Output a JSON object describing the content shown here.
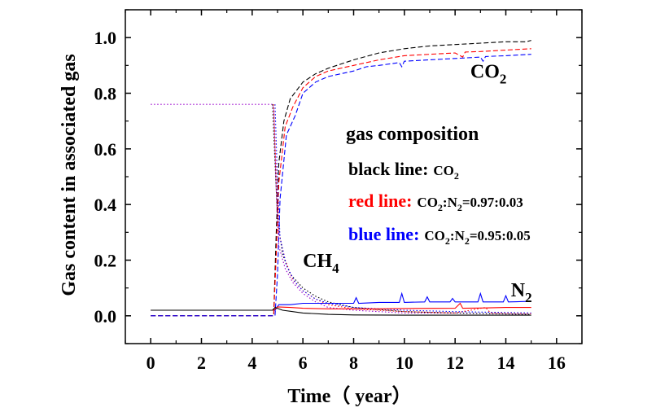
{
  "chart_data": {
    "type": "line",
    "xlabel": "Time（ year）",
    "ylabel": "Gas content in associated gas",
    "xlim": [
      -1,
      17
    ],
    "ylim": [
      -0.1,
      1.1
    ],
    "x_ticks": [
      0,
      2,
      4,
      6,
      8,
      10,
      12,
      14,
      16
    ],
    "y_ticks": [
      0.0,
      0.2,
      0.4,
      0.6,
      0.8,
      1.0
    ],
    "x_tick_labels": [
      "0",
      "2",
      "4",
      "6",
      "8",
      "10",
      "12",
      "14",
      "16"
    ],
    "y_tick_labels": [
      "0.0",
      "0.2",
      "0.4",
      "0.6",
      "0.8",
      "1.0"
    ],
    "grid": false,
    "colors": {
      "black": "#000000",
      "red": "#ff0000",
      "blue": "#0000ff",
      "purple": "#9900cc"
    },
    "legend": {
      "title": "gas composition",
      "entries": [
        {
          "label": "black line:",
          "desc": "CO2",
          "color": "#000000"
        },
        {
          "label": "red line:",
          "desc": "CO2:N2=0.97:0.03",
          "color": "#ff0000"
        },
        {
          "label": "blue line:",
          "desc": "CO2:N2=0.95:0.05",
          "color": "#0000ff"
        }
      ]
    },
    "annotations": [
      {
        "text": "CO2",
        "x": 12.6,
        "y": 0.855
      },
      {
        "text": "CH4",
        "x": 6.0,
        "y": 0.175
      },
      {
        "text": "N2",
        "x": 14.2,
        "y": 0.07
      }
    ],
    "series": [
      {
        "gas": "CO2",
        "group": "black",
        "color": "#000000",
        "dash": "dashed",
        "points": [
          [
            0,
            0.0
          ],
          [
            4.8,
            0.0
          ],
          [
            4.85,
            0.0
          ],
          [
            4.95,
            0.3
          ],
          [
            5.05,
            0.55
          ],
          [
            5.25,
            0.7
          ],
          [
            5.5,
            0.78
          ],
          [
            6,
            0.84
          ],
          [
            6.5,
            0.87
          ],
          [
            7,
            0.89
          ],
          [
            8,
            0.92
          ],
          [
            9,
            0.945
          ],
          [
            10,
            0.96
          ],
          [
            11,
            0.97
          ],
          [
            12,
            0.975
          ],
          [
            13,
            0.98
          ],
          [
            14,
            0.985
          ],
          [
            14.8,
            0.985
          ],
          [
            15,
            0.99
          ]
        ]
      },
      {
        "gas": "CO2",
        "group": "red",
        "color": "#ff0000",
        "dash": "dashed",
        "points": [
          [
            0,
            0.0
          ],
          [
            4.85,
            0.0
          ],
          [
            4.95,
            0.22
          ],
          [
            5.05,
            0.48
          ],
          [
            5.3,
            0.68
          ],
          [
            5.6,
            0.75
          ],
          [
            6,
            0.82
          ],
          [
            6.5,
            0.86
          ],
          [
            7,
            0.88
          ],
          [
            8,
            0.9
          ],
          [
            9,
            0.92
          ],
          [
            10,
            0.935
          ],
          [
            11,
            0.94
          ],
          [
            12,
            0.945
          ],
          [
            12.3,
            0.93
          ],
          [
            12.4,
            0.948
          ],
          [
            13,
            0.95
          ],
          [
            14,
            0.955
          ],
          [
            15,
            0.96
          ]
        ]
      },
      {
        "gas": "CO2",
        "group": "blue",
        "color": "#0000ff",
        "dash": "dashed",
        "points": [
          [
            0,
            0.0
          ],
          [
            4.9,
            0.0
          ],
          [
            5,
            0.15
          ],
          [
            5.1,
            0.42
          ],
          [
            5.35,
            0.65
          ],
          [
            5.7,
            0.72
          ],
          [
            6,
            0.8
          ],
          [
            6.5,
            0.84
          ],
          [
            7,
            0.86
          ],
          [
            8,
            0.88
          ],
          [
            8.5,
            0.895
          ],
          [
            9,
            0.9
          ],
          [
            9.8,
            0.91
          ],
          [
            9.9,
            0.895
          ],
          [
            10,
            0.915
          ],
          [
            11,
            0.92
          ],
          [
            12,
            0.925
          ],
          [
            13,
            0.93
          ],
          [
            13.1,
            0.915
          ],
          [
            13.2,
            0.932
          ],
          [
            14,
            0.935
          ],
          [
            15,
            0.94
          ]
        ]
      },
      {
        "gas": "CH4",
        "group": "purple",
        "color": "#9900cc",
        "dash": "dotted",
        "points": [
          [
            0,
            0.76
          ],
          [
            4.8,
            0.76
          ],
          [
            4.85,
            0.74
          ],
          [
            4.95,
            0.45
          ],
          [
            5.05,
            0.25
          ],
          [
            5.3,
            0.17
          ],
          [
            5.6,
            0.12
          ],
          [
            6,
            0.08
          ],
          [
            6.5,
            0.05
          ],
          [
            7,
            0.03
          ],
          [
            8,
            0.02
          ],
          [
            10,
            0.01
          ],
          [
            12,
            0.01
          ],
          [
            15,
            0.005
          ]
        ]
      },
      {
        "gas": "CH4",
        "group": "black",
        "color": "#000000",
        "dash": "dotted",
        "points": [
          [
            4.8,
            0.76
          ],
          [
            4.9,
            0.55
          ],
          [
            5,
            0.35
          ],
          [
            5.2,
            0.22
          ],
          [
            5.5,
            0.15
          ],
          [
            6,
            0.1
          ],
          [
            6.5,
            0.07
          ],
          [
            7,
            0.05
          ],
          [
            8,
            0.03
          ],
          [
            10,
            0.015
          ],
          [
            12,
            0.01
          ],
          [
            15,
            0.005
          ]
        ]
      },
      {
        "gas": "CH4",
        "group": "red",
        "color": "#ff0000",
        "dash": "dotted",
        "points": [
          [
            4.85,
            0.76
          ],
          [
            4.95,
            0.5
          ],
          [
            5.05,
            0.3
          ],
          [
            5.3,
            0.2
          ],
          [
            5.6,
            0.13
          ],
          [
            6,
            0.09
          ],
          [
            6.5,
            0.06
          ],
          [
            7,
            0.04
          ],
          [
            8,
            0.025
          ],
          [
            10,
            0.015
          ],
          [
            12,
            0.01
          ],
          [
            13.2,
            0.03
          ],
          [
            13.4,
            0.01
          ],
          [
            15,
            0.008
          ]
        ]
      },
      {
        "gas": "CH4",
        "group": "blue",
        "color": "#0000ff",
        "dash": "dotted",
        "points": [
          [
            4.9,
            0.76
          ],
          [
            5,
            0.48
          ],
          [
            5.1,
            0.28
          ],
          [
            5.35,
            0.18
          ],
          [
            5.7,
            0.12
          ],
          [
            6,
            0.09
          ],
          [
            6.5,
            0.06
          ],
          [
            7,
            0.045
          ],
          [
            8,
            0.03
          ],
          [
            10,
            0.02
          ],
          [
            12,
            0.015
          ],
          [
            15,
            0.01
          ]
        ]
      },
      {
        "gas": "N2",
        "group": "blue",
        "color": "#0000ff",
        "dash": "solid",
        "points": [
          [
            0,
            0.02
          ],
          [
            4.9,
            0.02
          ],
          [
            5.05,
            0.04
          ],
          [
            5.5,
            0.04
          ],
          [
            6,
            0.045
          ],
          [
            7,
            0.045
          ],
          [
            8,
            0.045
          ],
          [
            8.1,
            0.065
          ],
          [
            8.2,
            0.045
          ],
          [
            9,
            0.048
          ],
          [
            9.8,
            0.048
          ],
          [
            9.9,
            0.08
          ],
          [
            10,
            0.048
          ],
          [
            10.8,
            0.05
          ],
          [
            10.9,
            0.068
          ],
          [
            11,
            0.05
          ],
          [
            11.8,
            0.05
          ],
          [
            11.9,
            0.062
          ],
          [
            12,
            0.05
          ],
          [
            12.9,
            0.05
          ],
          [
            13,
            0.08
          ],
          [
            13.1,
            0.05
          ],
          [
            13.9,
            0.05
          ],
          [
            14,
            0.072
          ],
          [
            14.1,
            0.05
          ],
          [
            15,
            0.052
          ]
        ]
      },
      {
        "gas": "N2",
        "group": "red",
        "color": "#ff0000",
        "dash": "solid",
        "points": [
          [
            0,
            0.02
          ],
          [
            4.85,
            0.02
          ],
          [
            5,
            0.032
          ],
          [
            5.5,
            0.03
          ],
          [
            6,
            0.027
          ],
          [
            7,
            0.025
          ],
          [
            8,
            0.025
          ],
          [
            9,
            0.025
          ],
          [
            10,
            0.026
          ],
          [
            12,
            0.027
          ],
          [
            12.2,
            0.045
          ],
          [
            12.3,
            0.027
          ],
          [
            13,
            0.028
          ],
          [
            14,
            0.03
          ],
          [
            15,
            0.03
          ]
        ]
      },
      {
        "gas": "N2",
        "group": "black",
        "color": "#000000",
        "dash": "solid",
        "points": [
          [
            0,
            0.02
          ],
          [
            4.8,
            0.02
          ],
          [
            4.9,
            0.03
          ],
          [
            5.2,
            0.02
          ],
          [
            6,
            0.01
          ],
          [
            7,
            0.005
          ],
          [
            8,
            0.003
          ],
          [
            10,
            0.002
          ],
          [
            15,
            0.002
          ]
        ]
      }
    ]
  }
}
